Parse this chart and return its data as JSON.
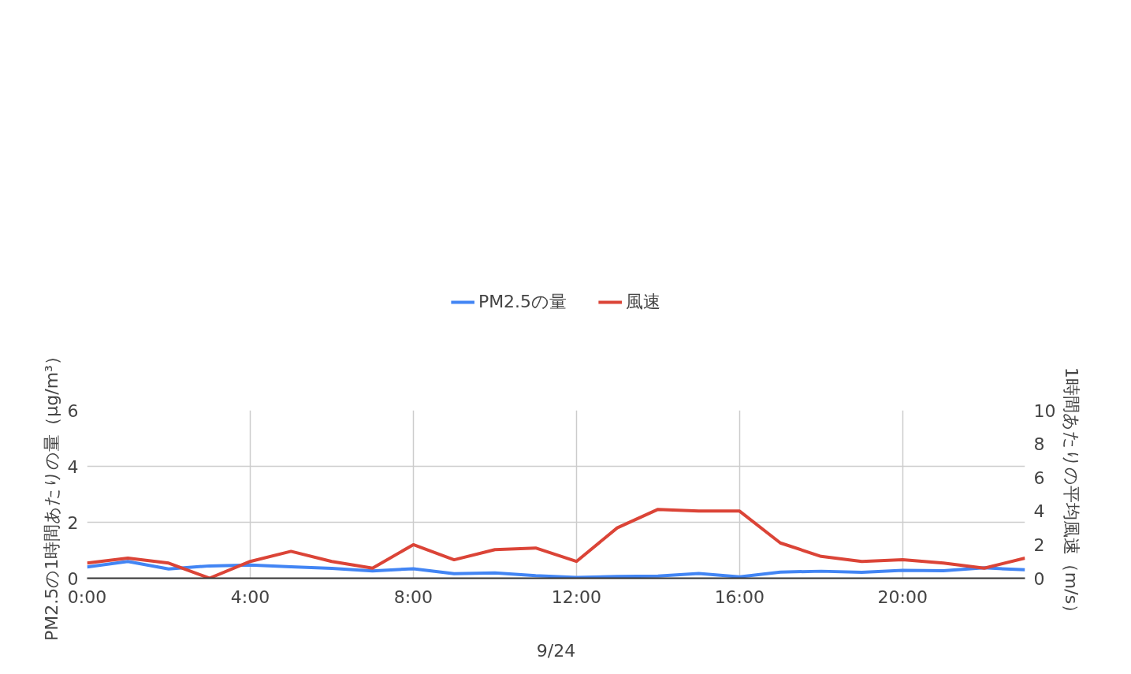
{
  "chart_data": {
    "type": "line",
    "xlabel": "9/24",
    "ylabel": "PM2.5の1時間あたりの量（μg/m³）",
    "y2label": "1時間あたりの平均風速（m/s）",
    "x": [
      0,
      1,
      2,
      3,
      4,
      5,
      6,
      7,
      8,
      9,
      10,
      11,
      12,
      13,
      14,
      15,
      16,
      17,
      18,
      19,
      20,
      21,
      22,
      23
    ],
    "series": [
      {
        "name": "PM2.5の量",
        "color": "#4285f4",
        "values": [
          0.4,
          0.6,
          0.33,
          0.44,
          0.47,
          0.41,
          0.35,
          0.26,
          0.34,
          0.16,
          0.19,
          0.09,
          0.03,
          0.06,
          0.08,
          0.17,
          0.05,
          0.22,
          0.25,
          0.21,
          0.28,
          0.27,
          0.37,
          0.3
        ]
      },
      {
        "name": "風速",
        "color": "#db4437",
        "axis": "y2",
        "values": [
          0.9,
          1.2,
          0.9,
          0,
          1.0,
          1.6,
          1.0,
          0.6,
          2.0,
          1.1,
          1.7,
          1.8,
          1.0,
          3.0,
          4.1,
          4.0,
          4.0,
          2.1,
          1.3,
          1.0,
          1.1,
          0.9,
          0.6,
          1.2
        ]
      }
    ],
    "xlim": [
      0,
      23
    ],
    "xticks": [
      {
        "value": 0,
        "label": "0:00"
      },
      {
        "value": 4,
        "label": "4:00"
      },
      {
        "value": 8,
        "label": "8:00"
      },
      {
        "value": 12,
        "label": "12:00"
      },
      {
        "value": 16,
        "label": "16:00"
      },
      {
        "value": 20,
        "label": "20:00"
      }
    ],
    "ylim": [
      0,
      6
    ],
    "yticks": [
      0,
      2,
      4,
      6
    ],
    "y2lim": [
      0,
      10
    ],
    "y2ticks": [
      0,
      2,
      4,
      6,
      8,
      10
    ],
    "grid": true,
    "legend": "top",
    "marker": "none",
    "line_style": "solid"
  }
}
